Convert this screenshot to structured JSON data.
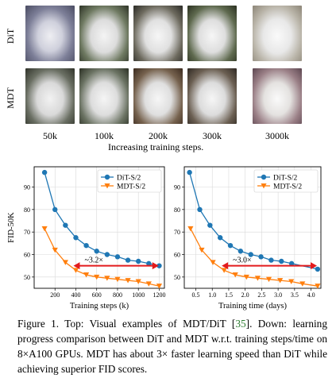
{
  "top_panel": {
    "row_labels": [
      "DiT",
      "MDT"
    ],
    "step_labels": [
      "50k",
      "100k",
      "200k",
      "300k",
      "3000k"
    ],
    "axis_caption": "Increasing training steps."
  },
  "chart_data": [
    {
      "type": "line",
      "xlabel": "Training steps (k)",
      "ylabel": "FID-50K",
      "xlim": [
        0,
        1250
      ],
      "ylim": [
        45,
        99
      ],
      "xticks": [
        200,
        400,
        600,
        800,
        1000,
        1200
      ],
      "yticks": [
        50,
        60,
        70,
        80,
        90
      ],
      "legend": "top-right",
      "annotation": "~3.2×",
      "series": [
        {
          "name": "DiT-S/2",
          "color": "#1f77b4",
          "marker": "circle",
          "x": [
            100,
            200,
            300,
            400,
            500,
            600,
            700,
            800,
            900,
            1000,
            1100,
            1200
          ],
          "y": [
            96.5,
            80,
            73,
            67.5,
            64,
            61.5,
            60,
            59,
            57.5,
            57,
            56,
            55
          ]
        },
        {
          "name": "MDT-S/2",
          "color": "#ff7f0e",
          "marker": "triangle-down",
          "x": [
            100,
            200,
            300,
            400,
            500,
            600,
            700,
            800,
            900,
            1000,
            1100,
            1200
          ],
          "y": [
            71.5,
            62,
            56.5,
            53,
            51,
            50,
            49.5,
            49,
            48.5,
            48,
            47,
            46
          ]
        }
      ]
    },
    {
      "type": "line",
      "xlabel": "Training time (days)",
      "ylabel": "",
      "xlim": [
        0.15,
        4.3
      ],
      "ylim": [
        45,
        99
      ],
      "xticks": [
        0.5,
        1.0,
        1.5,
        2.0,
        2.5,
        3.0,
        3.5,
        4.0
      ],
      "xticklabels": [
        "0.5",
        "1.0",
        "1.5",
        "2.0",
        "2.5",
        "3.0",
        "3.5",
        "4.0"
      ],
      "yticks": [
        50,
        60,
        70,
        80,
        90
      ],
      "legend": "top-right",
      "annotation": "~3.0×",
      "series": [
        {
          "name": "DiT-S/2",
          "color": "#1f77b4",
          "marker": "circle",
          "x": [
            0.31,
            0.62,
            0.93,
            1.24,
            1.55,
            1.86,
            2.17,
            2.48,
            2.79,
            3.1,
            3.41,
            4.2
          ],
          "y": [
            96.5,
            80,
            73,
            67.5,
            64,
            61.5,
            60,
            59,
            57.5,
            57,
            56,
            53.5
          ]
        },
        {
          "name": "MDT-S/2",
          "color": "#ff7f0e",
          "marker": "triangle-down",
          "x": [
            0.34,
            0.68,
            1.02,
            1.36,
            1.7,
            2.04,
            2.38,
            2.72,
            3.06,
            3.4,
            3.74,
            4.2
          ],
          "y": [
            71.5,
            62,
            56.5,
            53,
            51,
            50,
            49.5,
            49,
            48.5,
            48,
            47,
            46
          ]
        }
      ]
    }
  ],
  "caption": {
    "part1": "Figure 1. Top: Visual examples of MDT/DiT [",
    "cite": "35",
    "part2": "]. Down: learning progress comparison between DiT and MDT w.r.t. training steps/time on 8×A100 GPUs. MDT has about 3× faster learning speed than DiT while achieving superior FID scores."
  }
}
